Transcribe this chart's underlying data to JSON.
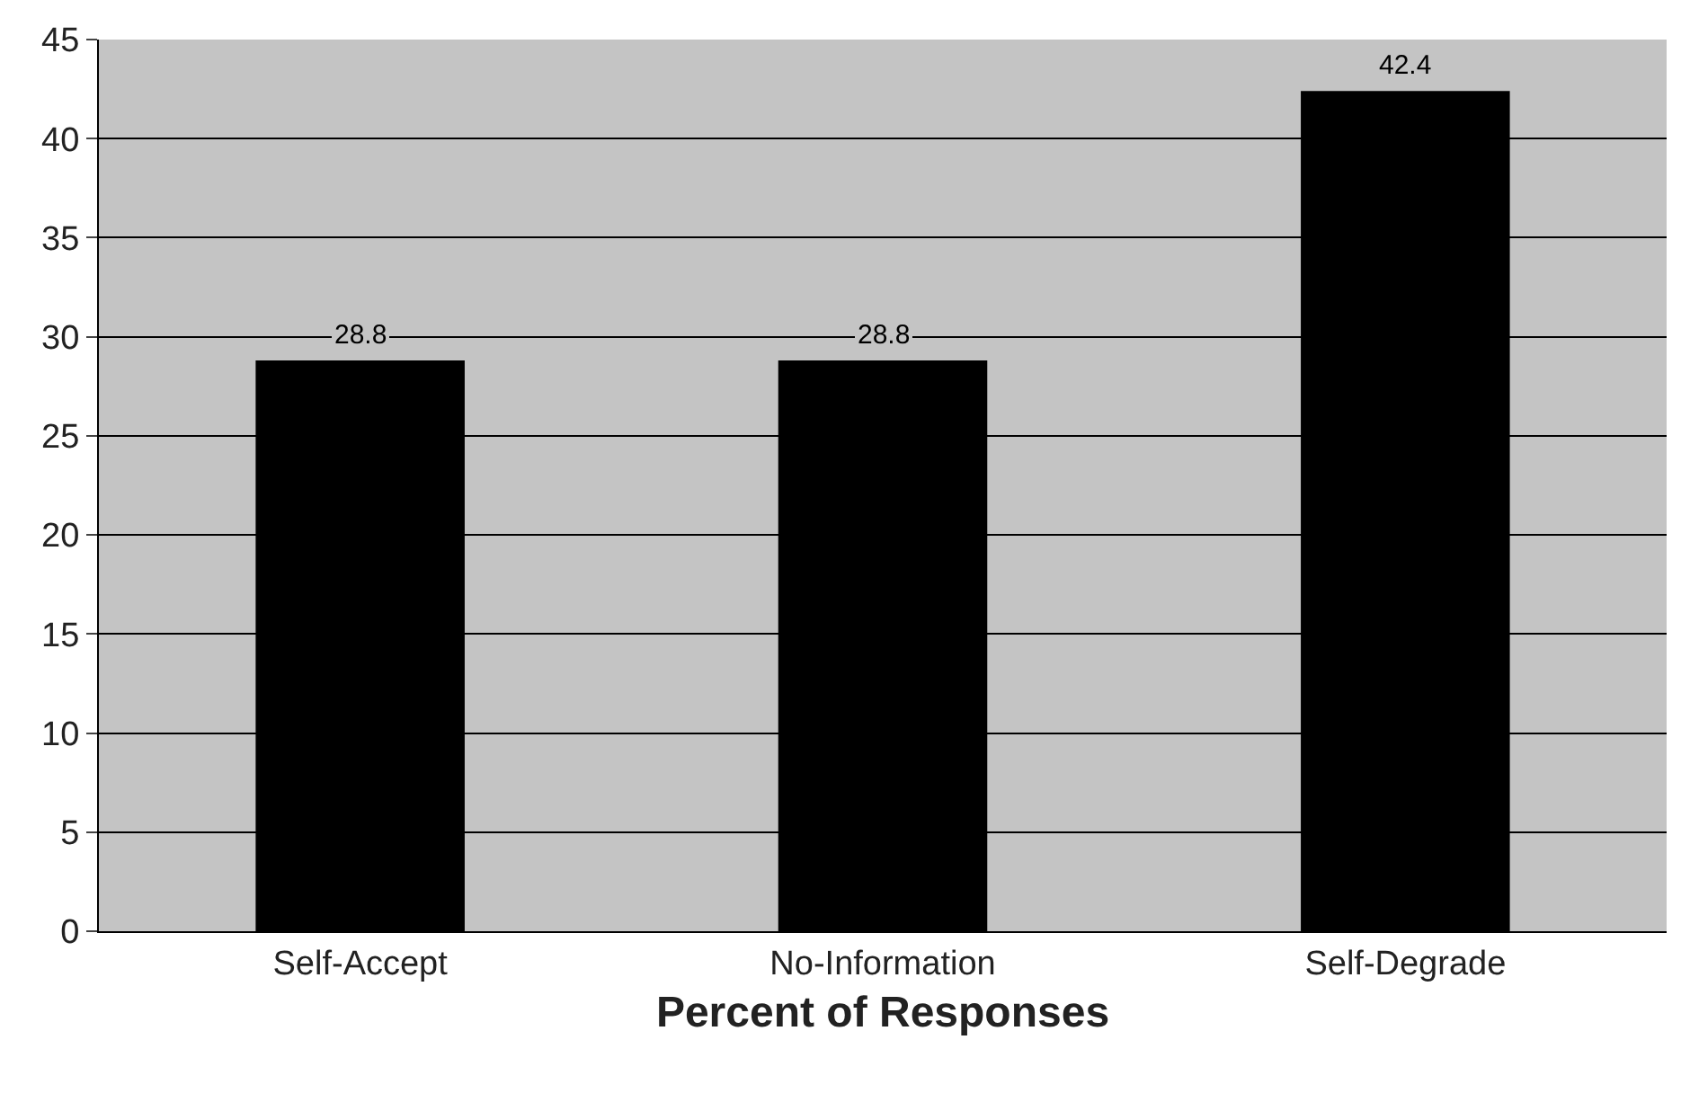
{
  "chart_data": {
    "type": "bar",
    "xlabel": "Percent of Responses",
    "categories": [
      "Self-Accept",
      "No-Information",
      "Self-Degrade"
    ],
    "values": [
      28.8,
      28.8,
      42.4
    ],
    "color": "#000000",
    "ylim": [
      0,
      45
    ],
    "yticks": [
      0,
      5,
      10,
      15,
      20,
      25,
      30,
      35,
      40,
      45
    ],
    "grid": "y",
    "data_labels": true
  }
}
